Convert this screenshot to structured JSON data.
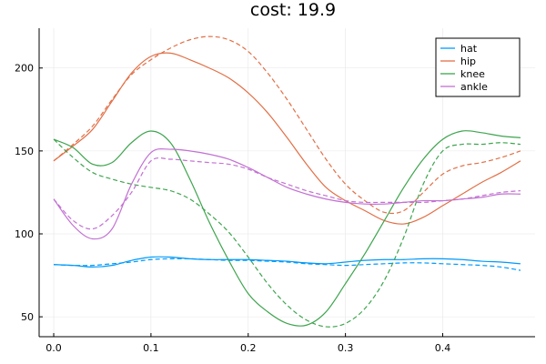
{
  "chart_data": {
    "type": "line",
    "title": "cost: 19.9",
    "xlabel": "",
    "ylabel": "",
    "xlim": [
      -0.015,
      0.495
    ],
    "ylim": [
      38,
      224
    ],
    "x_ticks": [
      0.0,
      0.1,
      0.2,
      0.3,
      0.4
    ],
    "x_tick_labels": [
      "0.0",
      "0.1",
      "0.2",
      "0.3",
      "0.4"
    ],
    "y_ticks": [
      50,
      100,
      150,
      200
    ],
    "y_tick_labels": [
      "50",
      "100",
      "150",
      "200"
    ],
    "grid": true,
    "legend_position": "top-right",
    "x": [
      0.0,
      0.02,
      0.04,
      0.06,
      0.08,
      0.1,
      0.12,
      0.14,
      0.16,
      0.18,
      0.2,
      0.22,
      0.24,
      0.26,
      0.28,
      0.3,
      0.32,
      0.34,
      0.36,
      0.38,
      0.4,
      0.42,
      0.44,
      0.46,
      0.48
    ],
    "series": [
      {
        "name": "hat",
        "color": "#009AFA",
        "style": "solid",
        "values": [
          81.5,
          81,
          80,
          81,
          84,
          86,
          86,
          85,
          84.5,
          84.5,
          84.5,
          84,
          83.5,
          82.5,
          82,
          83,
          84,
          84.5,
          84.5,
          85,
          85,
          84.5,
          83.5,
          83,
          82
        ]
      },
      {
        "name": "hat",
        "color": "#009AFA",
        "style": "dashed",
        "values": [
          81.5,
          81,
          81,
          82,
          83,
          84.5,
          85,
          85,
          84.5,
          84,
          84,
          83.5,
          83,
          82,
          81.5,
          81,
          81.5,
          82,
          82.5,
          82.5,
          82,
          81.5,
          81,
          80,
          78
        ]
      },
      {
        "name": "hip",
        "color": "#E26F46",
        "style": "solid",
        "values": [
          144,
          153,
          163,
          180,
          197,
          207,
          209,
          205,
          200,
          194,
          185,
          173,
          158,
          142,
          128,
          120,
          114,
          108,
          106,
          110,
          117,
          124,
          131,
          137,
          144
        ]
      },
      {
        "name": "hip",
        "color": "#E26F46",
        "style": "dashed",
        "values": [
          144,
          154,
          165,
          181,
          196,
          205,
          212,
          217,
          219,
          217,
          210,
          197,
          181,
          163,
          145,
          130,
          120,
          113,
          114,
          125,
          136,
          141,
          143,
          146,
          150
        ]
      },
      {
        "name": "knee",
        "color": "#3DA44D",
        "style": "solid",
        "values": [
          157,
          152,
          142,
          143,
          155,
          162,
          155,
          133,
          107,
          84,
          64,
          53,
          46,
          45,
          53,
          70,
          88,
          108,
          128,
          145,
          157,
          162,
          161,
          159,
          158
        ]
      },
      {
        "name": "knee",
        "color": "#3DA44D",
        "style": "dashed",
        "values": [
          157,
          146,
          137,
          133,
          130,
          128,
          126,
          121,
          112,
          101,
          86,
          70,
          57,
          48,
          44,
          46,
          55,
          72,
          98,
          130,
          150,
          154,
          154,
          155,
          154
        ]
      },
      {
        "name": "ankle",
        "color": "#C271D2",
        "style": "solid",
        "values": [
          121,
          105,
          97,
          103,
          130,
          149,
          151,
          150,
          148,
          145,
          140,
          134,
          128,
          124,
          121,
          119,
          118,
          118,
          119,
          120,
          120,
          121,
          122,
          124,
          124
        ]
      },
      {
        "name": "ankle",
        "color": "#C271D2",
        "style": "dashed",
        "values": [
          121,
          108,
          103,
          111,
          125,
          144,
          145,
          144,
          143,
          142,
          139,
          134,
          130,
          126,
          123,
          120,
          119,
          119,
          119,
          119,
          120,
          121,
          123,
          125,
          126
        ]
      }
    ],
    "legend": [
      {
        "label": "hat",
        "color": "#009AFA"
      },
      {
        "label": "hip",
        "color": "#E26F46"
      },
      {
        "label": "knee",
        "color": "#3DA44D"
      },
      {
        "label": "ankle",
        "color": "#C271D2"
      }
    ]
  }
}
